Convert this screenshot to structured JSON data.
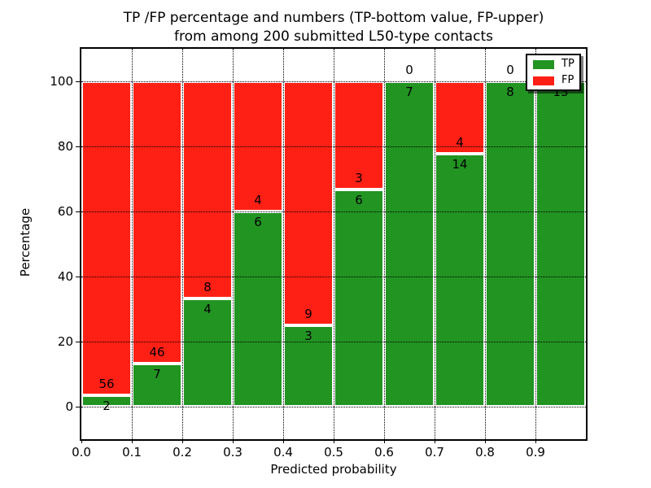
{
  "title": {
    "line1": "TP /FP percentage and numbers (TP-bottom value, FP-upper)",
    "line2": "from among 200 submitted L50-type contacts"
  },
  "axes": {
    "xlabel": "Predicted probability",
    "ylabel": "Percentage"
  },
  "legend": {
    "tp_label": "TP",
    "fp_label": "FP"
  },
  "colors": {
    "tp": "#229422",
    "fp": "#ff2015",
    "grid": "#000000",
    "background": "#ffffff"
  },
  "chart_data": {
    "type": "bar",
    "stacked": true,
    "normalized_to_percent": true,
    "title": "TP /FP percentage and numbers (TP-bottom value, FP-upper)\nfrom among 200 submitted L50-type contacts",
    "xlabel": "Predicted probability",
    "ylabel": "Percentage",
    "bin_width": 0.1,
    "bin_starts": [
      0.0,
      0.1,
      0.2,
      0.3,
      0.4,
      0.5,
      0.6,
      0.7,
      0.8,
      0.9
    ],
    "series": [
      {
        "name": "TP",
        "color": "#229422",
        "values": [
          2,
          7,
          4,
          6,
          3,
          6,
          7,
          14,
          8,
          13
        ]
      },
      {
        "name": "FP",
        "color": "#ff2015",
        "values": [
          56,
          46,
          8,
          4,
          9,
          3,
          0,
          4,
          0,
          0
        ]
      }
    ],
    "tp_percent_per_bin": [
      3.45,
      13.21,
      33.33,
      60.0,
      25.0,
      66.67,
      100.0,
      77.78,
      100.0,
      100.0
    ],
    "total_contacts": 200,
    "xticks": [
      "0.0",
      "0.1",
      "0.2",
      "0.3",
      "0.4",
      "0.5",
      "0.6",
      "0.7",
      "0.8",
      "0.9"
    ],
    "xtick_values": [
      0.0,
      0.1,
      0.2,
      0.3,
      0.4,
      0.5,
      0.6,
      0.7,
      0.8,
      0.9
    ],
    "yticks": [
      "0",
      "20",
      "40",
      "60",
      "80",
      "100"
    ],
    "ytick_values": [
      0,
      20,
      40,
      60,
      80,
      100
    ],
    "xlim": [
      0.0,
      1.0
    ],
    "ylim": [
      -10,
      110
    ],
    "grid": "dotted",
    "legend_position": "upper right"
  }
}
